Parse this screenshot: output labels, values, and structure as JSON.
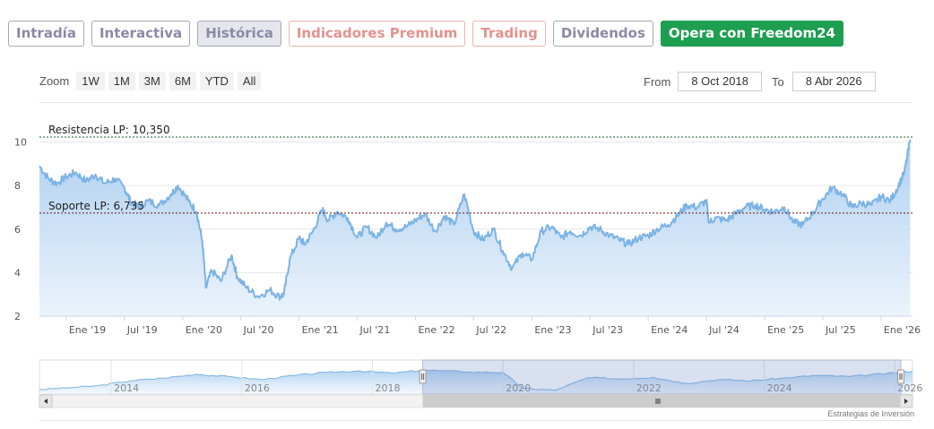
{
  "tabs": [
    {
      "label": "Intradía",
      "style": "t-gray"
    },
    {
      "label": "Interactiva",
      "style": "t-gray"
    },
    {
      "label": "Histórica",
      "style": "t-active"
    },
    {
      "label": "Indicadores Premium",
      "style": "t-red"
    },
    {
      "label": "Trading",
      "style": "t-red"
    },
    {
      "label": "Dividendos",
      "style": "t-gray"
    },
    {
      "label": "Opera con Freedom24",
      "style": "t-cta"
    }
  ],
  "zoom": {
    "label": "Zoom",
    "buttons": [
      "1W",
      "1M",
      "3M",
      "6M",
      "YTD",
      "All"
    ]
  },
  "range": {
    "from_label": "From",
    "from_value": "8 Oct 2018",
    "to_label": "To",
    "to_value": "8 Abr 2026"
  },
  "credit": "Estrategias de Inversión",
  "colors": {
    "line": "#7cb3e3",
    "fill_top": "#a9cdf0",
    "fill_bottom": "#e9f2fb",
    "accent": "#1e9e50"
  },
  "chart_data": {
    "type": "area",
    "ylim": [
      2,
      10.35
    ],
    "yticks": [
      2,
      4,
      6,
      8,
      10
    ],
    "x_range": [
      2018.77,
      2026.27
    ],
    "xticks": [
      {
        "label": "Ene '19",
        "x": 2019.0
      },
      {
        "label": "Jul '19",
        "x": 2019.5
      },
      {
        "label": "Ene '20",
        "x": 2020.0
      },
      {
        "label": "Jul '20",
        "x": 2020.5
      },
      {
        "label": "Ene '21",
        "x": 2021.0
      },
      {
        "label": "Jul '21",
        "x": 2021.5
      },
      {
        "label": "Ene '22",
        "x": 2022.0
      },
      {
        "label": "Jul '22",
        "x": 2022.5
      },
      {
        "label": "Ene '23",
        "x": 2023.0
      },
      {
        "label": "Jul '23",
        "x": 2023.5
      },
      {
        "label": "Ene '24",
        "x": 2024.0
      },
      {
        "label": "Jul '24",
        "x": 2024.5
      },
      {
        "label": "Ene '25",
        "x": 2025.0
      },
      {
        "label": "Jul '25",
        "x": 2025.5
      },
      {
        "label": "Ene '26",
        "x": 2026.0
      }
    ],
    "series": [
      {
        "x": [
          2018.77,
          2018.85,
          2018.92,
          2019.0,
          2019.08,
          2019.17,
          2019.25,
          2019.33,
          2019.42,
          2019.5,
          2019.55,
          2019.62,
          2019.7,
          2019.8,
          2019.9,
          2019.96,
          2020.05,
          2020.12,
          2020.17,
          2020.2,
          2020.25,
          2020.33,
          2020.42,
          2020.47,
          2020.55,
          2020.65,
          2020.75,
          2020.83,
          2020.87,
          2020.92,
          2021.0,
          2021.05,
          2021.12,
          2021.2,
          2021.25,
          2021.33,
          2021.42,
          2021.5,
          2021.58,
          2021.67,
          2021.75,
          2021.83,
          2021.92,
          2022.0,
          2022.08,
          2022.17,
          2022.25,
          2022.33,
          2022.42,
          2022.5,
          2022.58,
          2022.67,
          2022.75,
          2022.83,
          2022.92,
          2023.0,
          2023.08,
          2023.17,
          2023.25,
          2023.33,
          2023.42,
          2023.5,
          2023.58,
          2023.67,
          2023.75,
          2023.83,
          2023.92,
          2024.0,
          2024.08,
          2024.17,
          2024.25,
          2024.33,
          2024.42,
          2024.5,
          2024.52,
          2024.58,
          2024.67,
          2024.75,
          2024.83,
          2024.92,
          2025.0,
          2025.08,
          2025.17,
          2025.25,
          2025.33,
          2025.42,
          2025.5,
          2025.58,
          2025.67,
          2025.75,
          2025.83,
          2025.92,
          2026.0,
          2026.08,
          2026.15,
          2026.2,
          2026.25
        ],
        "y": [
          8.9,
          8.3,
          8.1,
          8.4,
          8.6,
          8.2,
          8.5,
          8.1,
          8.3,
          7.9,
          7.3,
          7.0,
          7.3,
          7.1,
          7.6,
          8.0,
          7.3,
          6.8,
          5.4,
          3.3,
          4.1,
          3.6,
          4.8,
          3.8,
          3.3,
          2.9,
          3.2,
          2.9,
          3.0,
          4.6,
          5.6,
          5.3,
          5.9,
          6.9,
          6.4,
          6.8,
          6.5,
          5.6,
          6.1,
          5.6,
          6.3,
          6.0,
          6.1,
          6.4,
          6.7,
          5.9,
          6.6,
          6.2,
          7.6,
          5.9,
          5.5,
          6.0,
          5.0,
          4.2,
          4.9,
          4.6,
          5.9,
          6.1,
          5.6,
          5.9,
          5.7,
          6.1,
          6.0,
          5.7,
          5.5,
          5.3,
          5.6,
          5.7,
          6.0,
          6.2,
          6.6,
          7.1,
          7.0,
          7.3,
          6.3,
          6.5,
          6.4,
          6.7,
          7.0,
          7.1,
          6.9,
          6.8,
          7.0,
          6.3,
          6.2,
          6.8,
          7.4,
          7.9,
          7.6,
          7.0,
          7.2,
          7.1,
          7.5,
          7.3,
          8.0,
          8.6,
          10.1
        ]
      }
    ],
    "annotations": [
      {
        "label": "Resistencia LP: 10,350",
        "y": 10.35,
        "color": "#1e5e2e"
      },
      {
        "label": "Soporte LP: 6,735",
        "y": 6.735,
        "color": "#6b1818"
      }
    ],
    "navigator": {
      "tick_labels": [
        {
          "label": "2014",
          "x": 2014.0
        },
        {
          "label": "2016",
          "x": 2016.0
        },
        {
          "label": "2018",
          "x": 2018.0
        },
        {
          "label": "2020",
          "x": 2020.0
        },
        {
          "label": "2022",
          "x": 2022.0
        },
        {
          "label": "2024",
          "x": 2024.0
        },
        {
          "label": "2026",
          "x": 2026.0
        }
      ],
      "x_range": [
        2012.9,
        2026.27
      ],
      "selected": [
        2018.77,
        2026.27
      ],
      "x": [
        2012.9,
        2013.3,
        2013.8,
        2014.3,
        2014.8,
        2015.3,
        2015.8,
        2016.3,
        2016.8,
        2017.3,
        2017.8,
        2018.3,
        2018.77,
        2019.5,
        2020.0,
        2020.3,
        2020.8,
        2021.3,
        2021.8,
        2022.3,
        2022.8,
        2023.3,
        2023.8,
        2024.3,
        2024.8,
        2025.3,
        2025.8,
        2026.27
      ],
      "y": [
        3.2,
        3.6,
        4.2,
        5.5,
        6.2,
        7.2,
        6.6,
        5.8,
        6.9,
        7.7,
        8.1,
        7.5,
        8.3,
        7.8,
        7.7,
        3.5,
        3.0,
        6.3,
        6.0,
        6.4,
        4.8,
        5.8,
        5.5,
        6.2,
        6.9,
        6.6,
        7.3,
        8.0
      ]
    }
  }
}
